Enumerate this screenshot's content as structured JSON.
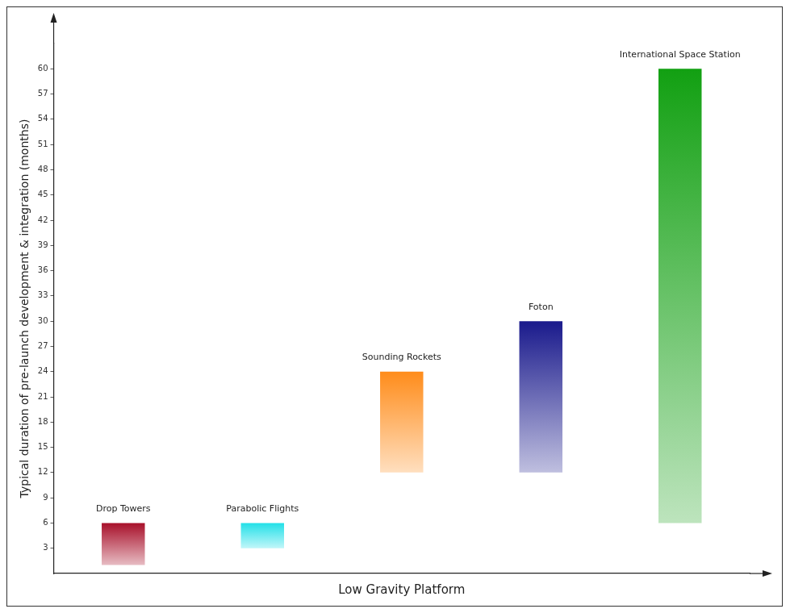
{
  "chart_data": {
    "type": "bar",
    "x_label": "Low Gravity Platform",
    "y_label": "Typical duration of pre-launch development & integration (months)",
    "categories": [
      "Drop Towers",
      "Parabolic Flights",
      "Sounding Rockets",
      "Foton",
      "International Space Station"
    ],
    "values": [
      [
        1,
        6
      ],
      [
        3,
        6
      ],
      [
        12,
        24
      ],
      [
        12,
        30
      ],
      [
        6,
        60
      ]
    ],
    "colors": [
      "#a8102a",
      "#22e0e8",
      "#ff8c1a",
      "#1a1a8c",
      "#12a012"
    ],
    "ylim": [
      0,
      63
    ],
    "yticks": [
      3,
      6,
      9,
      12,
      15,
      18,
      21,
      24,
      27,
      30,
      33,
      36,
      39,
      42,
      45,
      48,
      51,
      54,
      57,
      60
    ],
    "grid": false,
    "tick_labels": "y"
  }
}
